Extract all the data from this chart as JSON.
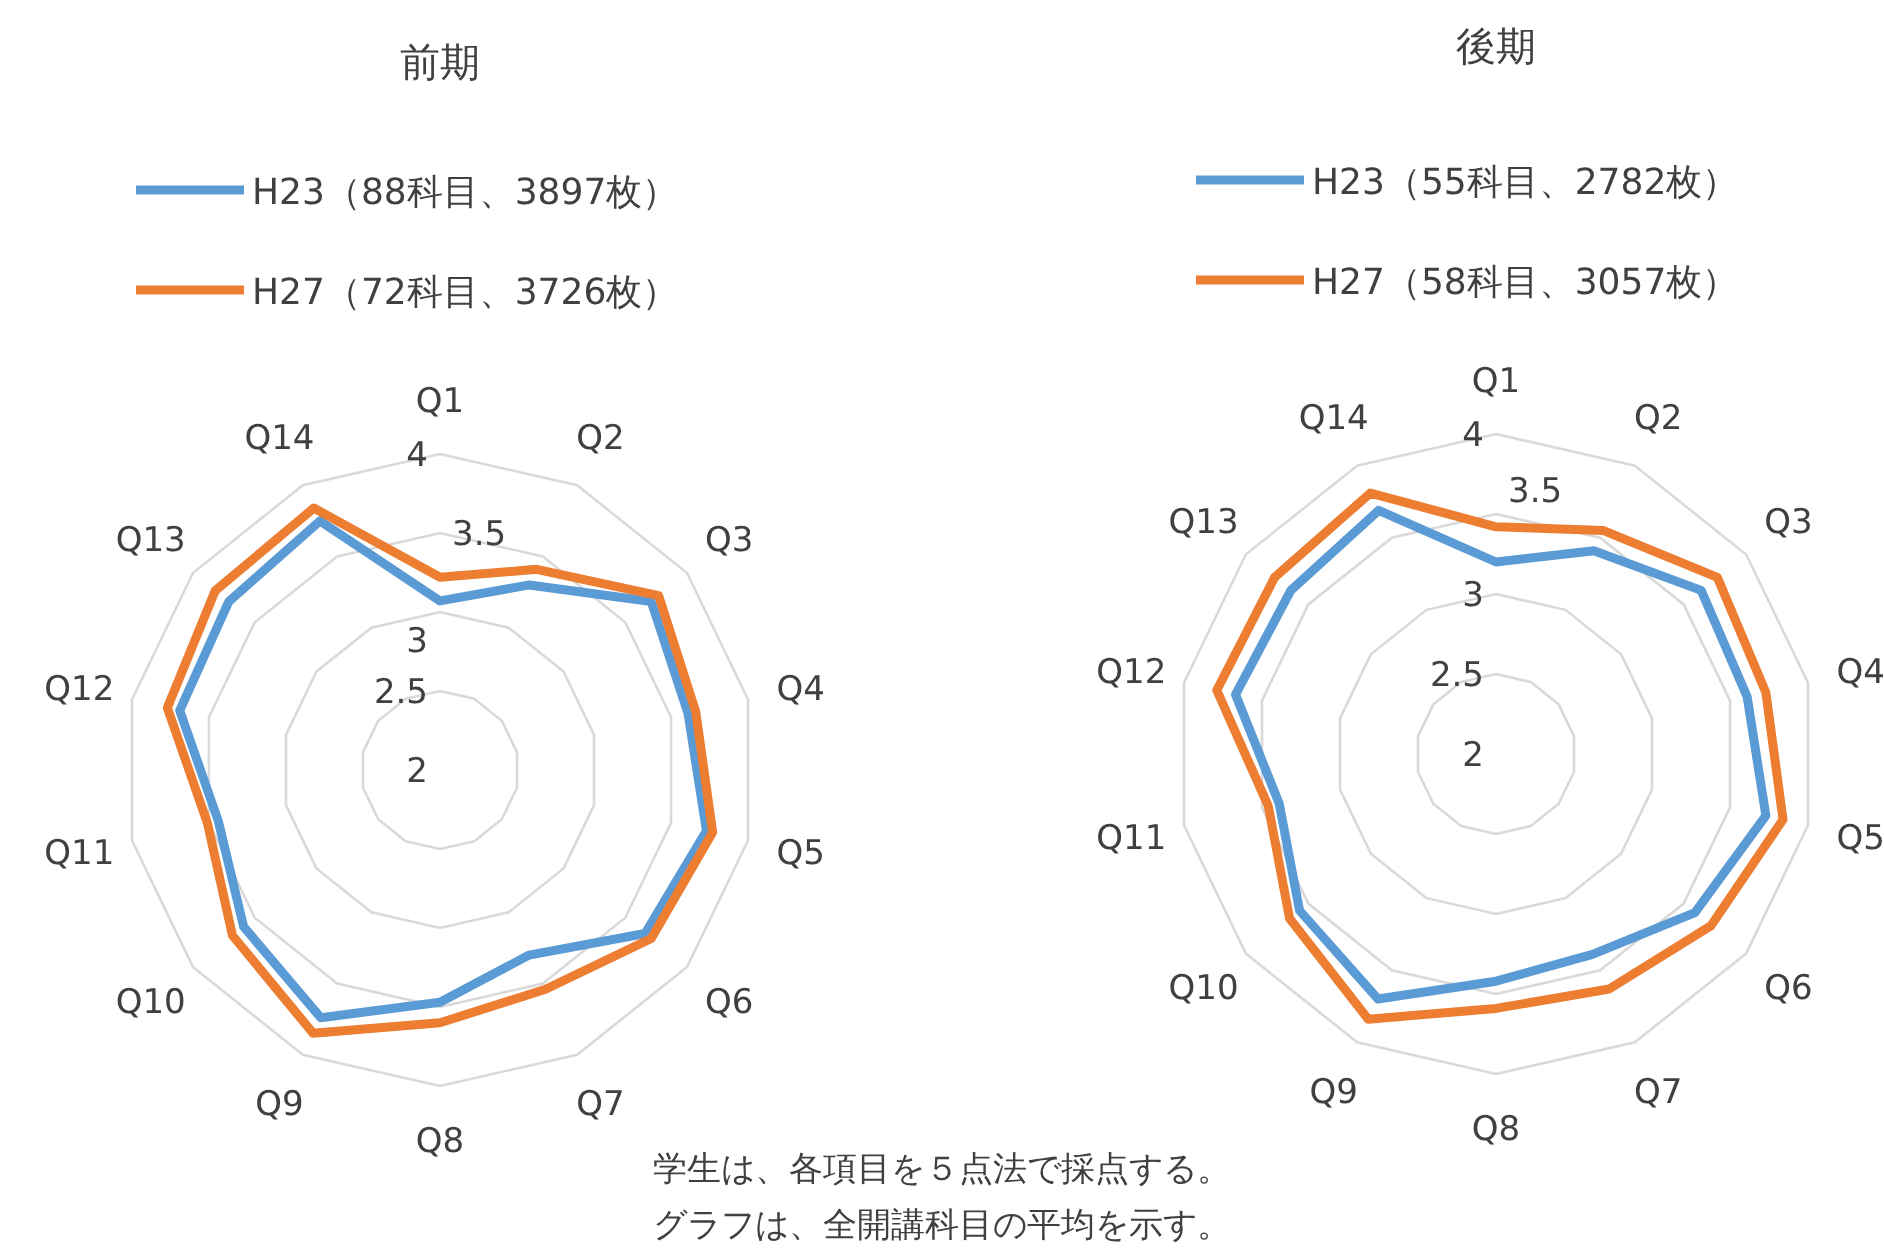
{
  "chart_data": [
    {
      "type": "radar",
      "title": "前期",
      "categories": [
        "Q1",
        "Q2",
        "Q3",
        "Q4",
        "Q5",
        "Q6",
        "Q7",
        "Q8",
        "Q9",
        "Q10",
        "Q11",
        "Q12",
        "Q13",
        "Q14"
      ],
      "ylim": [
        2,
        4
      ],
      "yticks": [
        2,
        2.5,
        3,
        3.5,
        4
      ],
      "grid": true,
      "legend": "top",
      "line_style": "solid",
      "marker": "none",
      "series": [
        {
          "name": "H23（88科目、3897枚）",
          "color": "#5b9bd5",
          "values": [
            3.07,
            3.3,
            3.71,
            3.61,
            3.73,
            3.66,
            3.3,
            3.47,
            3.74,
            3.59,
            3.44,
            3.69,
            3.71,
            3.75
          ]
        },
        {
          "name": "H27（72科目、3726枚）",
          "color": "#ed7d31",
          "values": [
            3.22,
            3.41,
            3.77,
            3.66,
            3.77,
            3.71,
            3.54,
            3.6,
            3.85,
            3.68,
            3.51,
            3.77,
            3.82,
            3.84
          ]
        }
      ],
      "annotations": [
        "学生は、各項目を５点法で採点する。",
        "グラフは、全開講科目の平均を示す。"
      ]
    },
    {
      "type": "radar",
      "title": "後期",
      "categories": [
        "Q1",
        "Q2",
        "Q3",
        "Q4",
        "Q5",
        "Q6",
        "Q7",
        "Q8",
        "Q9",
        "Q10",
        "Q11",
        "Q12",
        "Q13",
        "Q14"
      ],
      "ylim": [
        2,
        4
      ],
      "yticks": [
        2,
        2.5,
        3,
        3.5,
        4
      ],
      "grid": true,
      "legend": "top",
      "line_style": "solid",
      "marker": "none",
      "series": [
        {
          "name": "H23（55科目、2782枚）",
          "color": "#5b9bd5",
          "values": [
            3.2,
            3.41,
            3.64,
            3.61,
            3.73,
            3.59,
            3.39,
            3.42,
            3.7,
            3.57,
            3.39,
            3.67,
            3.64,
            3.69
          ]
        },
        {
          "name": "H27（58科目、3057枚）",
          "color": "#ed7d31",
          "values": [
            3.42,
            3.55,
            3.77,
            3.73,
            3.84,
            3.72,
            3.63,
            3.59,
            3.84,
            3.65,
            3.46,
            3.79,
            3.77,
            3.81
          ]
        }
      ]
    }
  ]
}
